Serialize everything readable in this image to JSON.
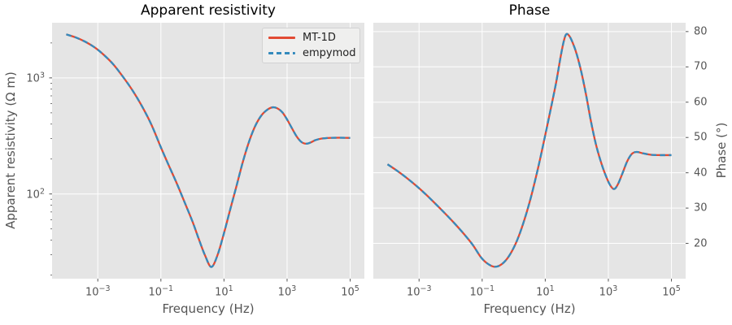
{
  "figure": {
    "background": "#ffffff",
    "axes_background": "#e5e5e5",
    "grid_color": "#ffffff",
    "tick_color": "#555555",
    "label_color": "#555555",
    "title_color": "#000000"
  },
  "legend": {
    "position": "upper-right-of-left-subplot",
    "items": [
      {
        "label": "MT-1D",
        "color": "#e24a33",
        "style": "solid"
      },
      {
        "label": "empymod",
        "color": "#348abd",
        "style": "dashed"
      }
    ]
  },
  "chart_data": [
    {
      "type": "line",
      "title": "Apparent resistivity",
      "xlabel": "Frequency (Hz)",
      "ylabel": "Apparent resistivity (Ω m)",
      "xscale": "log",
      "yscale": "log",
      "xlim_log10": [
        -4.45,
        5.45
      ],
      "ylim_log10": [
        1.27,
        3.475
      ],
      "x_ticks_exp": [
        -3,
        -1,
        1,
        3,
        5
      ],
      "y_ticks_exp": [
        2,
        3
      ],
      "grid": true,
      "series": [
        {
          "name": "MT-1D",
          "color": "#e24a33",
          "line_style": "solid",
          "line_width": 2.3
        },
        {
          "name": "empymod",
          "color": "#348abd",
          "line_style": "dashed",
          "line_width": 2.3
        }
      ],
      "x_log10": [
        -4.0,
        -3.7,
        -3.4,
        -3.1,
        -2.8,
        -2.5,
        -2.2,
        -1.9,
        -1.6,
        -1.3,
        -1.0,
        -0.75,
        -0.5,
        -0.25,
        0.0,
        0.2,
        0.4,
        0.6,
        0.8,
        1.0,
        1.2,
        1.4,
        1.6,
        1.8,
        2.0,
        2.2,
        2.4,
        2.55,
        2.7,
        2.85,
        3.0,
        3.15,
        3.3,
        3.45,
        3.6,
        3.75,
        3.9,
        4.1,
        4.35,
        4.65,
        5.0
      ],
      "values": [
        2370,
        2230,
        2050,
        1830,
        1570,
        1300,
        1020,
        780,
        570,
        395,
        252,
        176,
        124,
        85,
        58,
        41,
        29.5,
        23.5,
        30,
        46,
        74,
        118,
        190,
        285,
        390,
        480,
        538,
        558,
        545,
        505,
        438,
        370,
        314,
        281,
        271,
        278,
        291,
        300,
        304,
        305,
        304
      ]
    },
    {
      "type": "line",
      "title": "Phase",
      "xlabel": "Frequency (Hz)",
      "ylabel": "Phase (°)",
      "xscale": "log",
      "yscale": "linear",
      "xlim_log10": [
        -4.45,
        5.45
      ],
      "ylim": [
        10.0,
        82.5
      ],
      "x_ticks_exp": [
        -3,
        -1,
        1,
        3,
        5
      ],
      "y_ticks": [
        20,
        30,
        40,
        50,
        60,
        70,
        80
      ],
      "y_axis_side": "right",
      "grid": true,
      "series": [
        {
          "name": "MT-1D",
          "color": "#e24a33",
          "line_style": "solid",
          "line_width": 2.3
        },
        {
          "name": "empymod",
          "color": "#348abd",
          "line_style": "dashed",
          "line_width": 2.3
        }
      ],
      "x_log10": [
        -4.0,
        -3.7,
        -3.4,
        -3.1,
        -2.8,
        -2.5,
        -2.2,
        -1.9,
        -1.6,
        -1.3,
        -1.05,
        -0.85,
        -0.63,
        -0.45,
        -0.25,
        -0.05,
        0.15,
        0.35,
        0.55,
        0.75,
        0.9,
        1.05,
        1.2,
        1.35,
        1.48,
        1.58,
        1.66,
        1.76,
        1.88,
        2.0,
        2.15,
        2.3,
        2.45,
        2.6,
        2.75,
        2.9,
        3.05,
        3.18,
        3.3,
        3.45,
        3.6,
        3.75,
        3.9,
        4.1,
        4.35,
        4.65,
        5.0
      ],
      "values": [
        42.4,
        40.6,
        38.6,
        36.4,
        34.0,
        31.4,
        28.7,
        25.9,
        22.9,
        19.6,
        16.2,
        14.4,
        13.4,
        13.7,
        15.2,
        17.9,
        21.8,
        27.0,
        33.2,
        40.5,
        46.5,
        52.8,
        59.2,
        65.8,
        72.5,
        77.0,
        79.2,
        78.8,
        76.6,
        73.5,
        68.3,
        61.8,
        54.5,
        48.3,
        43.5,
        39.6,
        36.6,
        35.4,
        36.7,
        39.9,
        43.3,
        45.4,
        45.9,
        45.5,
        45.1,
        45.0,
        45.0
      ]
    }
  ]
}
